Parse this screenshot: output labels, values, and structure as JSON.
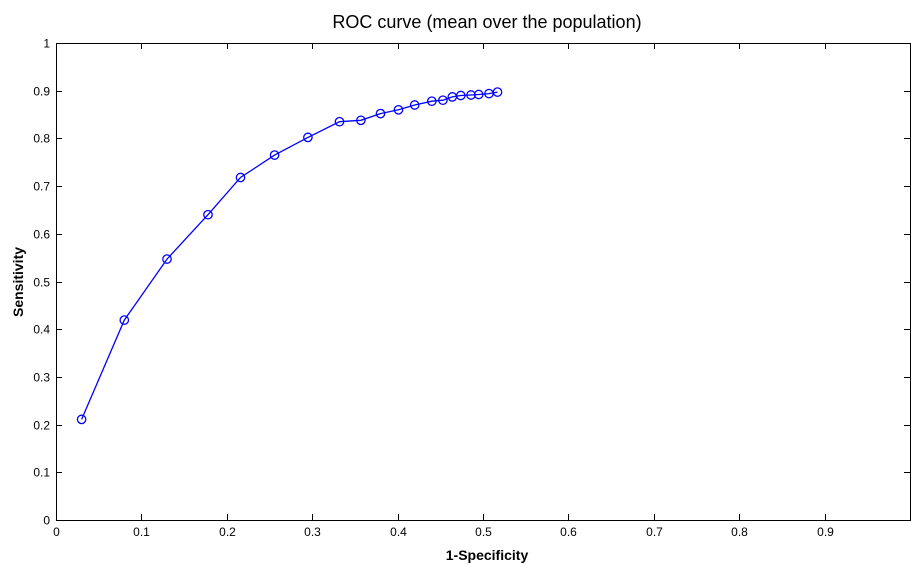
{
  "chart_data": {
    "type": "line",
    "title": "ROC curve (mean over the population)",
    "xlabel": "1-Specificity",
    "ylabel": "Sensitivity",
    "xlim": [
      0,
      1
    ],
    "ylim": [
      0,
      1
    ],
    "xticks": [
      "0",
      "0.1",
      "0.2",
      "0.3",
      "0.4",
      "0.5",
      "0.6",
      "0.7",
      "0.8",
      "0.9"
    ],
    "yticks": [
      "0",
      "0.1",
      "0.2",
      "0.3",
      "0.4",
      "0.5",
      "0.6",
      "0.7",
      "0.8",
      "0.9",
      "1"
    ],
    "grid": false,
    "marker": "circle",
    "line_color": "#0000ff",
    "series": [
      {
        "x": [
          0.03,
          0.08,
          0.13,
          0.178,
          0.216,
          0.256,
          0.295,
          0.332,
          0.357,
          0.38,
          0.401,
          0.42,
          0.44,
          0.453,
          0.464,
          0.474,
          0.486,
          0.495,
          0.507,
          0.517
        ],
        "y": [
          0.211,
          0.419,
          0.547,
          0.64,
          0.718,
          0.765,
          0.802,
          0.835,
          0.838,
          0.852,
          0.86,
          0.87,
          0.878,
          0.88,
          0.887,
          0.89,
          0.891,
          0.892,
          0.894,
          0.897
        ]
      }
    ]
  }
}
